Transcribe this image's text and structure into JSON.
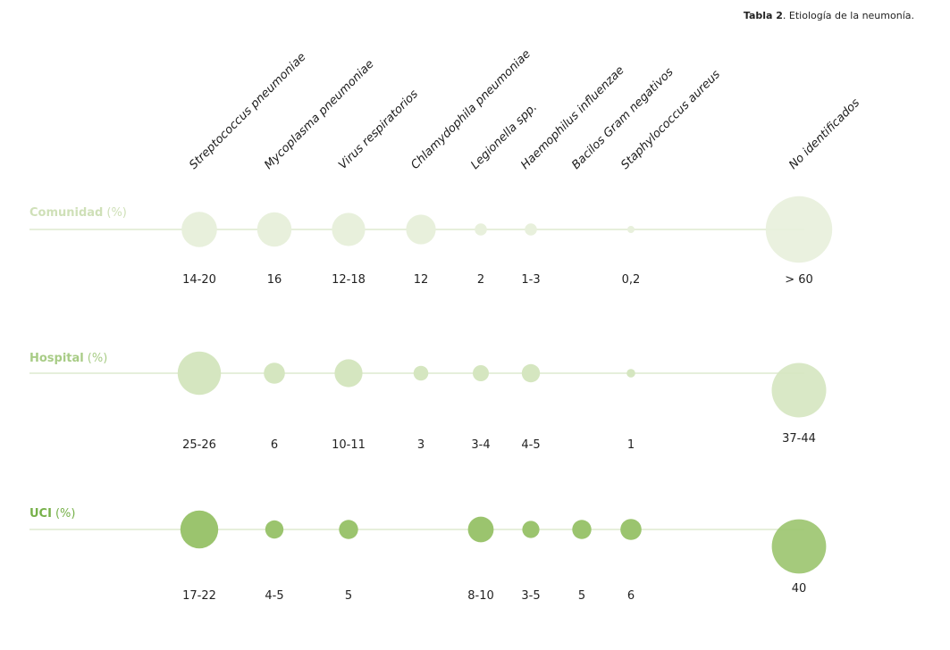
{
  "caption": {
    "bold": "Tabla 2",
    "text": ". Etiología de la neumonía."
  },
  "chart_data": {
    "type": "bubble",
    "title": "Tabla 2. Etiología de la neumonía.",
    "unit": "(%)",
    "categories": [
      "Streptococcus pneumoniae",
      "Mycoplasma pneumoniae",
      "Virus respiratorios",
      "Chlamydophila pneumoniae",
      "Legionella spp.",
      "Haemophilus influenzae",
      "Bacilos Gram negativos",
      "Staphylococcus aureus",
      "No identificados"
    ],
    "series": [
      {
        "name": "Comunidad",
        "unit": "(%)",
        "color": "#e8f0dc",
        "labels": [
          "14-20",
          "16",
          "12-18",
          "12",
          "2",
          "1-3",
          "",
          "0,2",
          "> 60"
        ],
        "values": [
          17,
          16,
          15,
          12,
          2,
          2,
          0,
          0.2,
          60
        ]
      },
      {
        "name": "Hospital",
        "unit": "(%)",
        "color": "#d5e6c0",
        "labels": [
          "25-26",
          "6",
          "10-11",
          "3",
          "3-4",
          "4-5",
          "",
          "1",
          "37-44"
        ],
        "values": [
          25.5,
          6,
          10.5,
          3,
          3.5,
          4.5,
          0,
          1,
          40.5
        ]
      },
      {
        "name": "UCI",
        "unit": "(%)",
        "color": "#9bc46e",
        "labels": [
          "17-22",
          "4-5",
          "5",
          "",
          "8-10",
          "3-5",
          "5",
          "6",
          "40"
        ],
        "values": [
          19.5,
          4.5,
          5,
          0,
          9,
          4,
          5,
          6,
          40
        ]
      }
    ]
  },
  "colors": {
    "comunidad_title": "#cfe0b8",
    "hospital_title": "#a8cc86",
    "uci_title": "#77b14a",
    "line": "#e6efdb"
  }
}
